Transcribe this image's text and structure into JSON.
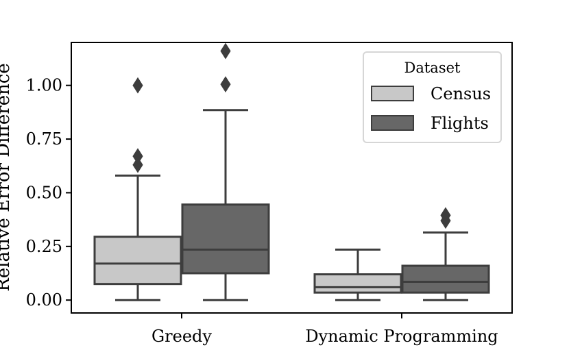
{
  "chart_data": {
    "type": "box",
    "title": "",
    "xlabel": "",
    "ylabel": "Relative Error Difference",
    "ylim": [
      -0.06,
      1.2
    ],
    "yticks": [
      0.0,
      0.25,
      0.5,
      0.75,
      1.0
    ],
    "ytick_labels": [
      "0.00",
      "0.25",
      "0.50",
      "0.75",
      "1.00"
    ],
    "categories": [
      "Greedy",
      "Dynamic Programming"
    ],
    "legend": {
      "title": "Dataset",
      "placement": "upper right",
      "entries": [
        "Census",
        "Flights"
      ]
    },
    "colors": {
      "Census": "#c8c8c8",
      "Flights": "#676767",
      "stroke": "#3d3d3d"
    },
    "series": [
      {
        "name": "Census",
        "boxes": [
          {
            "category": "Greedy",
            "whisker_low": 0.0,
            "q1": 0.075,
            "median": 0.17,
            "q3": 0.295,
            "whisker_high": 0.58,
            "outliers": [
              0.63,
              0.67,
              1.0
            ]
          },
          {
            "category": "Dynamic Programming",
            "whisker_low": 0.0,
            "q1": 0.035,
            "median": 0.06,
            "q3": 0.12,
            "whisker_high": 0.235,
            "outliers": []
          }
        ]
      },
      {
        "name": "Flights",
        "boxes": [
          {
            "category": "Greedy",
            "whisker_low": 0.0,
            "q1": 0.125,
            "median": 0.235,
            "q3": 0.445,
            "whisker_high": 0.885,
            "outliers": [
              1.005,
              1.16
            ]
          },
          {
            "category": "Dynamic Programming",
            "whisker_low": 0.0,
            "q1": 0.035,
            "median": 0.085,
            "q3": 0.16,
            "whisker_high": 0.315,
            "outliers": [
              0.37,
              0.395
            ]
          }
        ]
      }
    ]
  }
}
